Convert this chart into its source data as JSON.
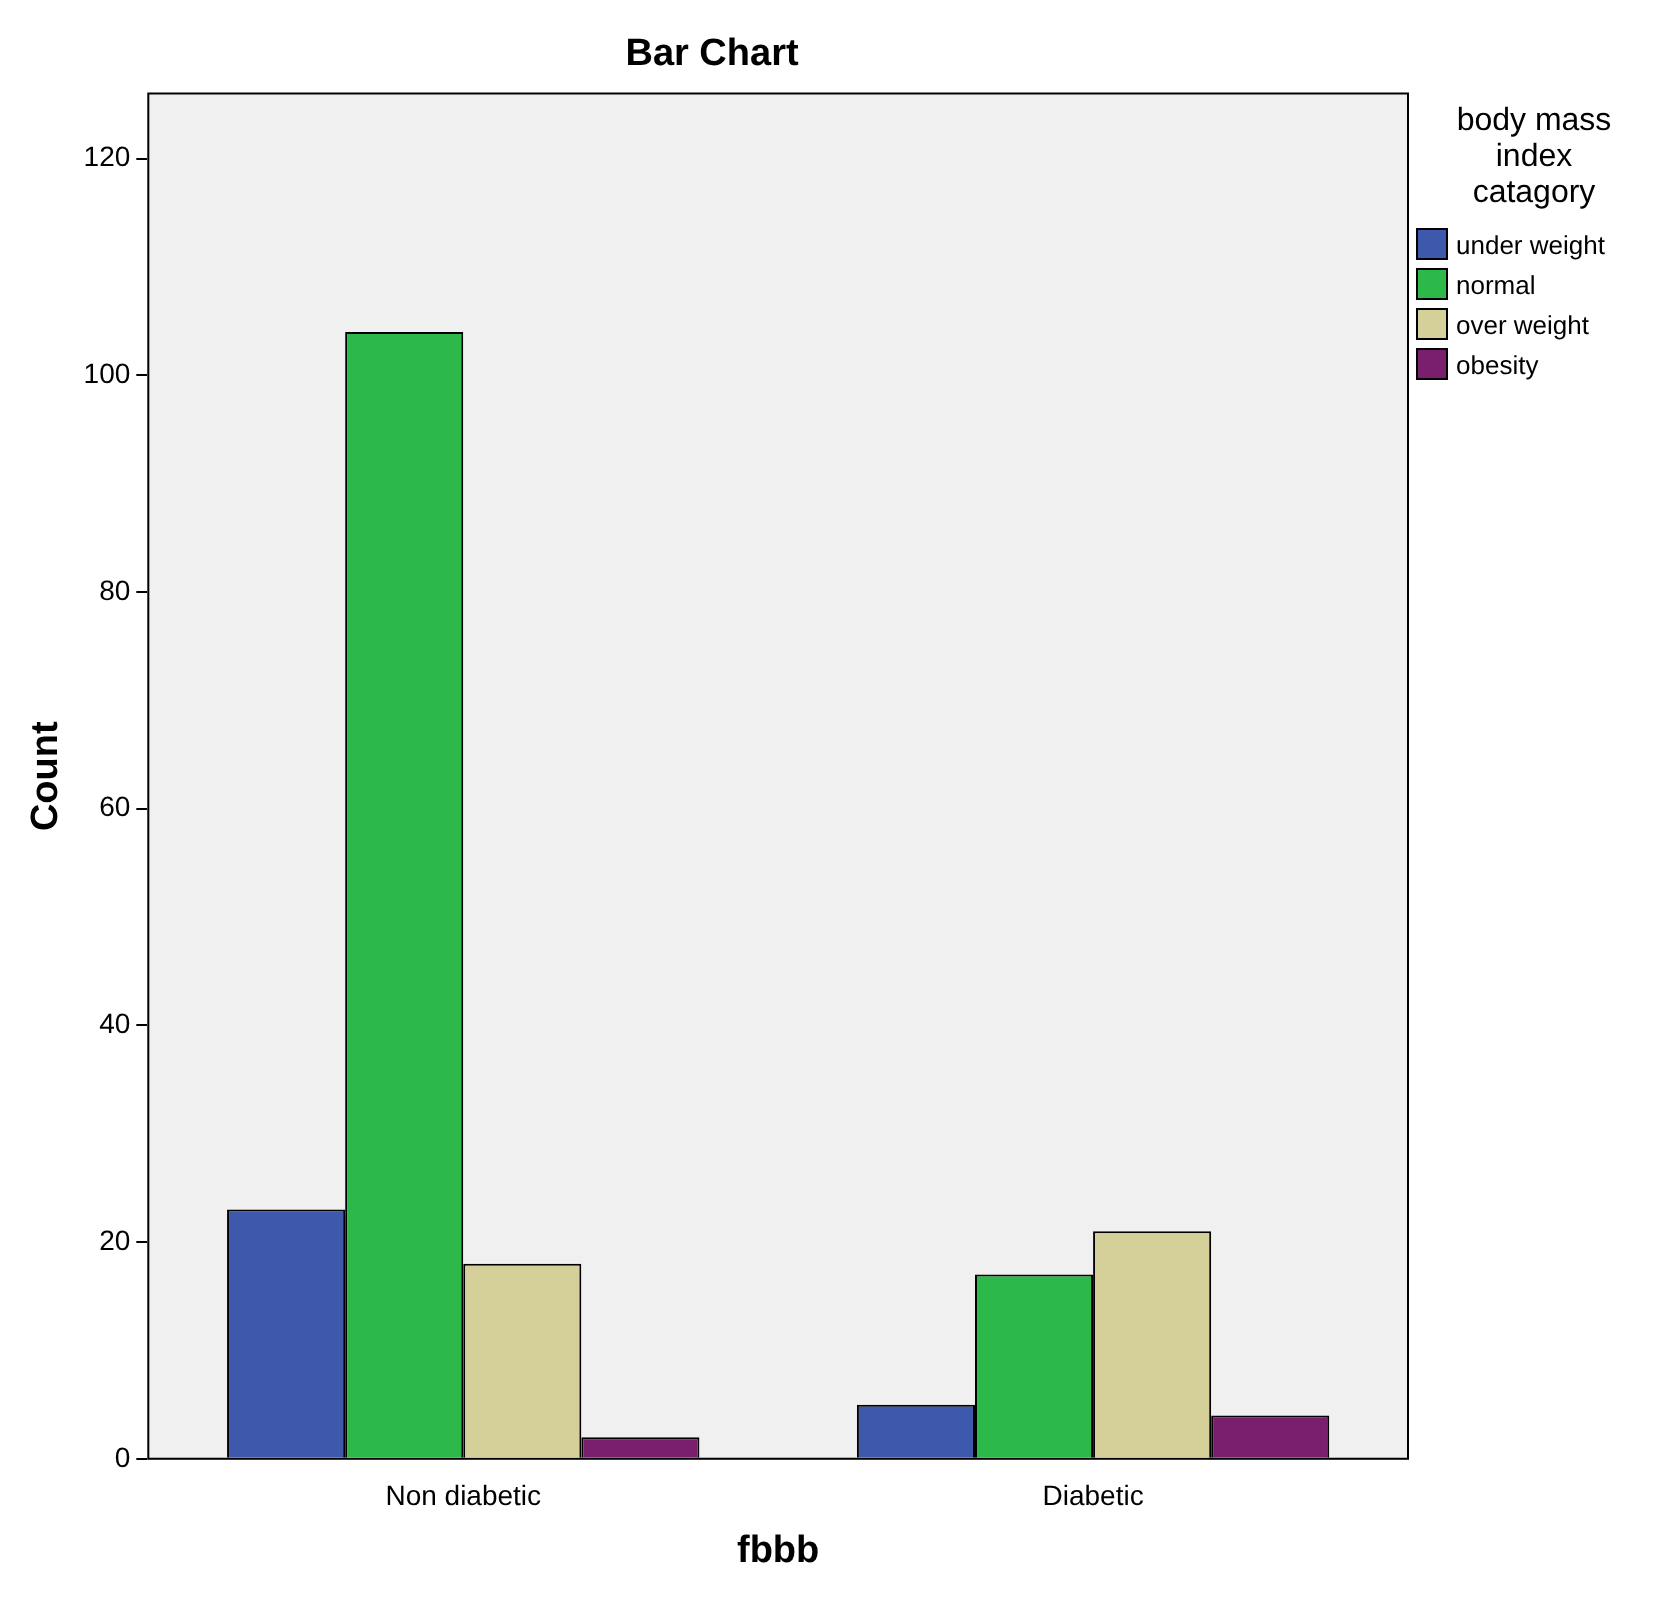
{
  "chart_data": {
    "type": "bar",
    "title": "Bar Chart",
    "xlabel": "fbbb",
    "ylabel": "Count",
    "legend_title": "body mass index catagory",
    "categories": [
      "Non diabetic",
      "Diabetic"
    ],
    "series": [
      {
        "name": "under weight",
        "color": "#3e58ac",
        "values": [
          23,
          5
        ]
      },
      {
        "name": "normal",
        "color": "#2db84a",
        "values": [
          104,
          17
        ]
      },
      {
        "name": "over weight",
        "color": "#d5cf9a",
        "values": [
          18,
          21
        ]
      },
      {
        "name": "obesity",
        "color": "#7a1f6e",
        "values": [
          2,
          4
        ]
      }
    ],
    "ylim": [
      0,
      126
    ],
    "yticks": [
      0,
      20,
      40,
      60,
      80,
      100,
      120
    ],
    "grid": false,
    "legend": "top right"
  }
}
